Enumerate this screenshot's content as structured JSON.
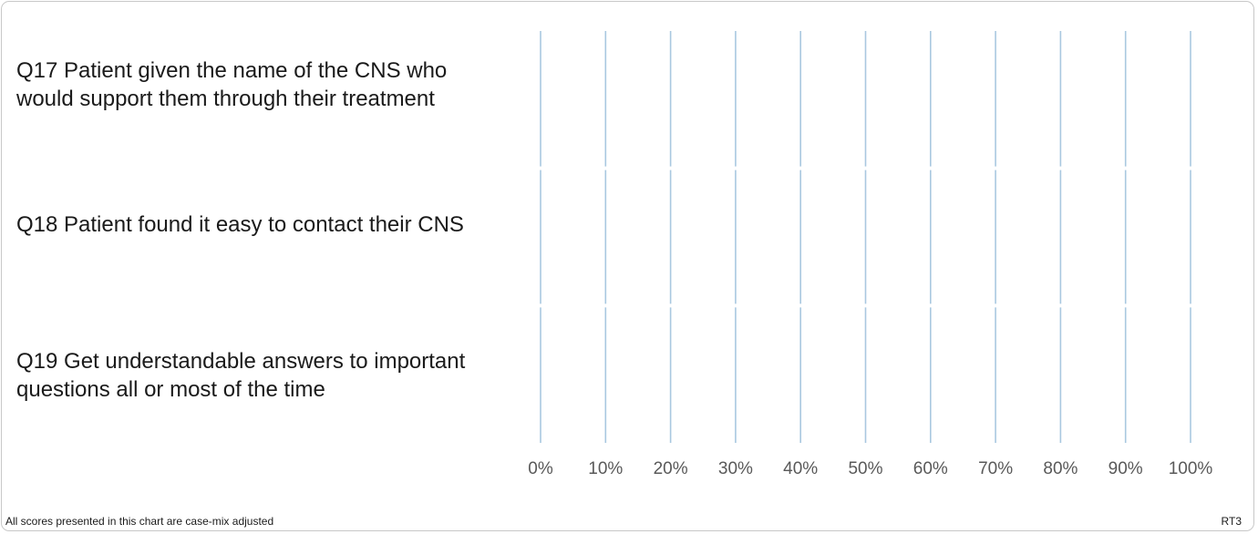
{
  "chart_data": {
    "type": "bar",
    "orientation": "horizontal",
    "categories": [
      "Q17 Patient given the name of the CNS who would support them through their treatment",
      "Q18 Patient found it easy to contact their CNS",
      "Q19 Get understandable answers to important questions all or most of the time"
    ],
    "xlim": [
      0,
      100
    ],
    "x_ticks": [
      "0%",
      "10%",
      "20%",
      "30%",
      "40%",
      "50%",
      "60%",
      "70%",
      "80%",
      "90%",
      "100%"
    ],
    "grid": true,
    "grid_color": "#a9c8e0",
    "series": []
  },
  "footer": {
    "note": "All scores presented in this chart are case-mix adjusted",
    "code": "RT3"
  }
}
